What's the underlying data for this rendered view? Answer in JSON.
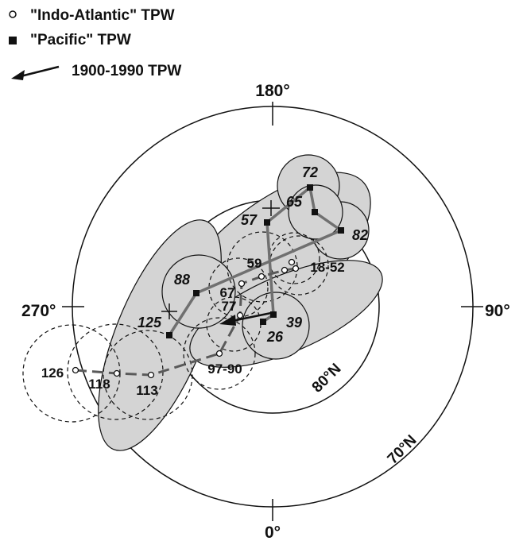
{
  "legend": {
    "indo_atlantic": "\"Indo-Atlantic\" TPW",
    "pacific": "\"Pacific\" TPW",
    "recent": "1900-1990 TPW"
  },
  "axes": {
    "top": "180°",
    "bottom": "0°",
    "left": "270°",
    "right": "90°",
    "inner_circle": "80°N",
    "outer_circle": "70°N"
  },
  "pacific_ages": [
    "72",
    "65",
    "57",
    "82",
    "88",
    "125",
    "39",
    "26"
  ],
  "indo_atlantic_ages": [
    "59",
    "18-52",
    "67",
    "77",
    "97-90",
    "126",
    "118",
    "113"
  ],
  "colors": {
    "ellipse_fill": "#d4d4d4",
    "pacific_path": "#707070",
    "indo_path": "#5a5a5a",
    "ink": "#111111"
  }
}
